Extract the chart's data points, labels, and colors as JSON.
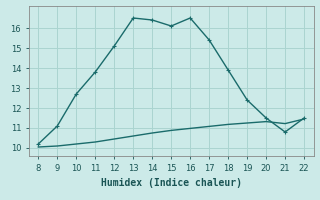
{
  "xlabel": "Humidex (Indice chaleur)",
  "background_color": "#cceae8",
  "grid_color": "#aad4d0",
  "line_color": "#1a6b6b",
  "series1_x": [
    8,
    9,
    10,
    11,
    12,
    13,
    14,
    15,
    16,
    17,
    18,
    19,
    20,
    21,
    22
  ],
  "series1_y": [
    10.2,
    11.1,
    12.7,
    13.8,
    15.1,
    16.5,
    16.4,
    16.1,
    16.5,
    15.4,
    13.9,
    12.4,
    11.5,
    10.8,
    11.5
  ],
  "series2_x": [
    8,
    9,
    10,
    11,
    12,
    13,
    14,
    15,
    16,
    17,
    18,
    19,
    20,
    21,
    22
  ],
  "series2_y": [
    10.05,
    10.1,
    10.2,
    10.3,
    10.45,
    10.6,
    10.75,
    10.88,
    10.98,
    11.08,
    11.18,
    11.25,
    11.32,
    11.22,
    11.45
  ],
  "xlim": [
    7.5,
    22.5
  ],
  "ylim": [
    9.6,
    17.1
  ],
  "xticks": [
    8,
    9,
    10,
    11,
    12,
    13,
    14,
    15,
    16,
    17,
    18,
    19,
    20,
    21,
    22
  ],
  "yticks": [
    10,
    11,
    12,
    13,
    14,
    15,
    16
  ],
  "markersize": 3,
  "linewidth": 1.0,
  "tick_fontsize": 6.0,
  "label_fontsize": 7.0
}
